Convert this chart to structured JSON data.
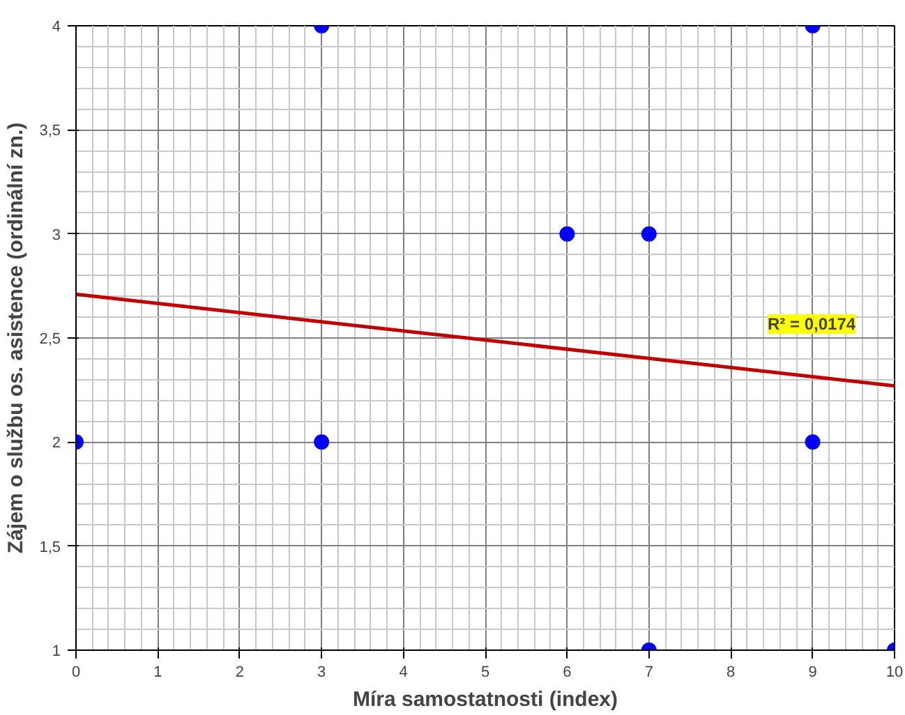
{
  "chart_data": {
    "type": "scatter",
    "xlabel": "Míra samostatnosti (index)",
    "ylabel": "Zájem o službu os. asistence (ordinální zn.)",
    "xlim": [
      0,
      10
    ],
    "ylim": [
      1,
      4
    ],
    "xticks": [
      0,
      1,
      2,
      3,
      4,
      5,
      6,
      7,
      8,
      9,
      10
    ],
    "yticks": [
      1,
      {
        "value": 1.5,
        "label": "1,5"
      },
      2,
      {
        "value": 2.5,
        "label": "2,5"
      },
      3,
      {
        "value": 3.5,
        "label": "3,5"
      },
      4
    ],
    "grid": true,
    "marker": "circle",
    "series": [
      {
        "color": "#0000ff",
        "x": [
          0,
          3,
          3,
          6,
          7,
          7,
          9,
          9,
          10
        ],
        "values": [
          2,
          4,
          2,
          3,
          3,
          1,
          4,
          2,
          1
        ]
      },
      {
        "type": "line",
        "color": "#c00000",
        "x": [
          0,
          10
        ],
        "values": [
          2.71,
          2.27
        ],
        "marker": "none",
        "line_style": "solid"
      }
    ],
    "annotations": [
      "R² = 0,0174"
    ]
  }
}
